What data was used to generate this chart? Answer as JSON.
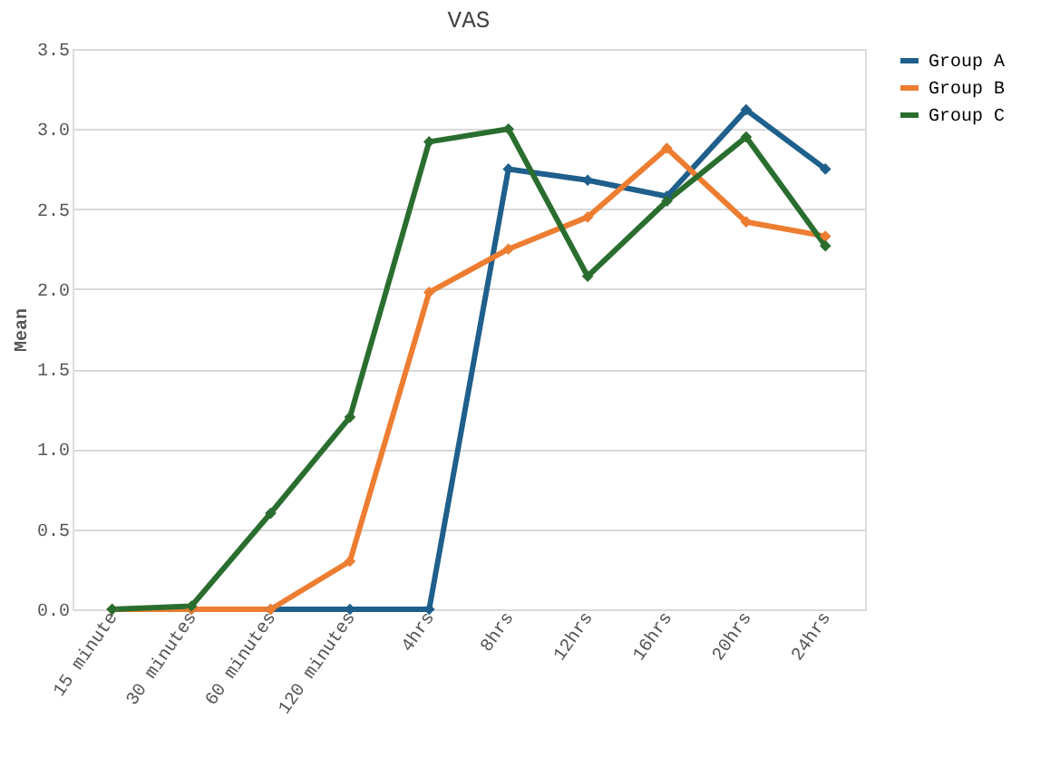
{
  "chart_data": {
    "type": "line",
    "title": "VAS",
    "ylabel": "Mean",
    "categories": [
      "15 minute",
      "30 minutes",
      "60 minutes",
      "120 minutes",
      "4hrs",
      "8hrs",
      "12hrs",
      "16hrs",
      "20hrs",
      "24hrs"
    ],
    "series": [
      {
        "name": "Group A",
        "color": "#1f5f8b",
        "values": [
          0,
          0,
          0,
          0,
          0,
          2.75,
          2.68,
          2.58,
          3.12,
          2.75
        ]
      },
      {
        "name": "Group B",
        "color": "#ed7d31",
        "values": [
          0,
          0,
          0,
          0.3,
          1.98,
          2.25,
          2.45,
          2.88,
          2.42,
          2.33
        ]
      },
      {
        "name": "Group C",
        "color": "#2a6e2f",
        "values": [
          0,
          0.02,
          0.6,
          1.2,
          2.92,
          3.0,
          2.08,
          2.55,
          2.95,
          2.27
        ]
      }
    ],
    "ylim": [
      0,
      3.5
    ],
    "yticks": [
      {
        "value": 0,
        "label": "0.0"
      },
      0.5,
      {
        "value": 1,
        "label": "1.0"
      },
      1.5,
      {
        "value": 2,
        "label": "2.0"
      },
      2.5,
      {
        "value": 3,
        "label": "3.0"
      },
      3.5
    ],
    "grid": "y",
    "legend": "right",
    "marker": "diamond",
    "line_style": "solid"
  }
}
